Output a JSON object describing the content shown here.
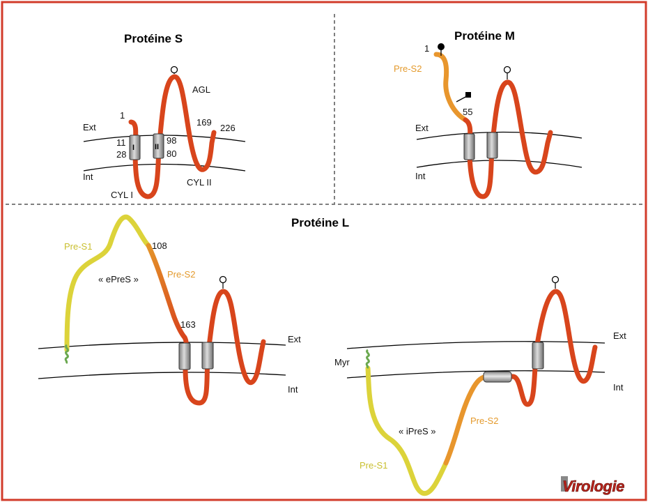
{
  "colors": {
    "frame": "#d23b2a",
    "red_chain": "#d8451c",
    "orange_chain": "#e8962d",
    "yellow_chain": "#dcd33a",
    "pres2_text": "#e49a2c",
    "pres1_text": "#c9bf2e",
    "myr_anchor": "#6aa84f"
  },
  "panel_s": {
    "title": "Protéine S",
    "ext": "Ext",
    "int": "Int",
    "n1": "1",
    "n11": "11",
    "n28": "28",
    "n98": "98",
    "n80": "80",
    "n169": "169",
    "n226": "226",
    "tm1": "I",
    "tm2": "II",
    "agl": "AGL",
    "cyl1": "CYL I",
    "cyl2": "CYL II"
  },
  "panel_m": {
    "title": "Protéine M",
    "ext": "Ext",
    "int": "Int",
    "n1": "1",
    "n55": "55",
    "pres2": "Pre-S2"
  },
  "panel_l": {
    "title": "Protéine L",
    "left": {
      "pres1": "Pre-S1",
      "pres2": "Pre-S2",
      "epres": "« ePreS »",
      "n108": "108",
      "n163": "163",
      "ext": "Ext",
      "int": "Int"
    },
    "right": {
      "myr": "Myr",
      "ipres": "« iPreS »",
      "pres1": "Pre-S1",
      "pres2": "Pre-S2",
      "ext": "Ext",
      "int": "Int"
    }
  },
  "logo": {
    "text": "Virologie"
  }
}
